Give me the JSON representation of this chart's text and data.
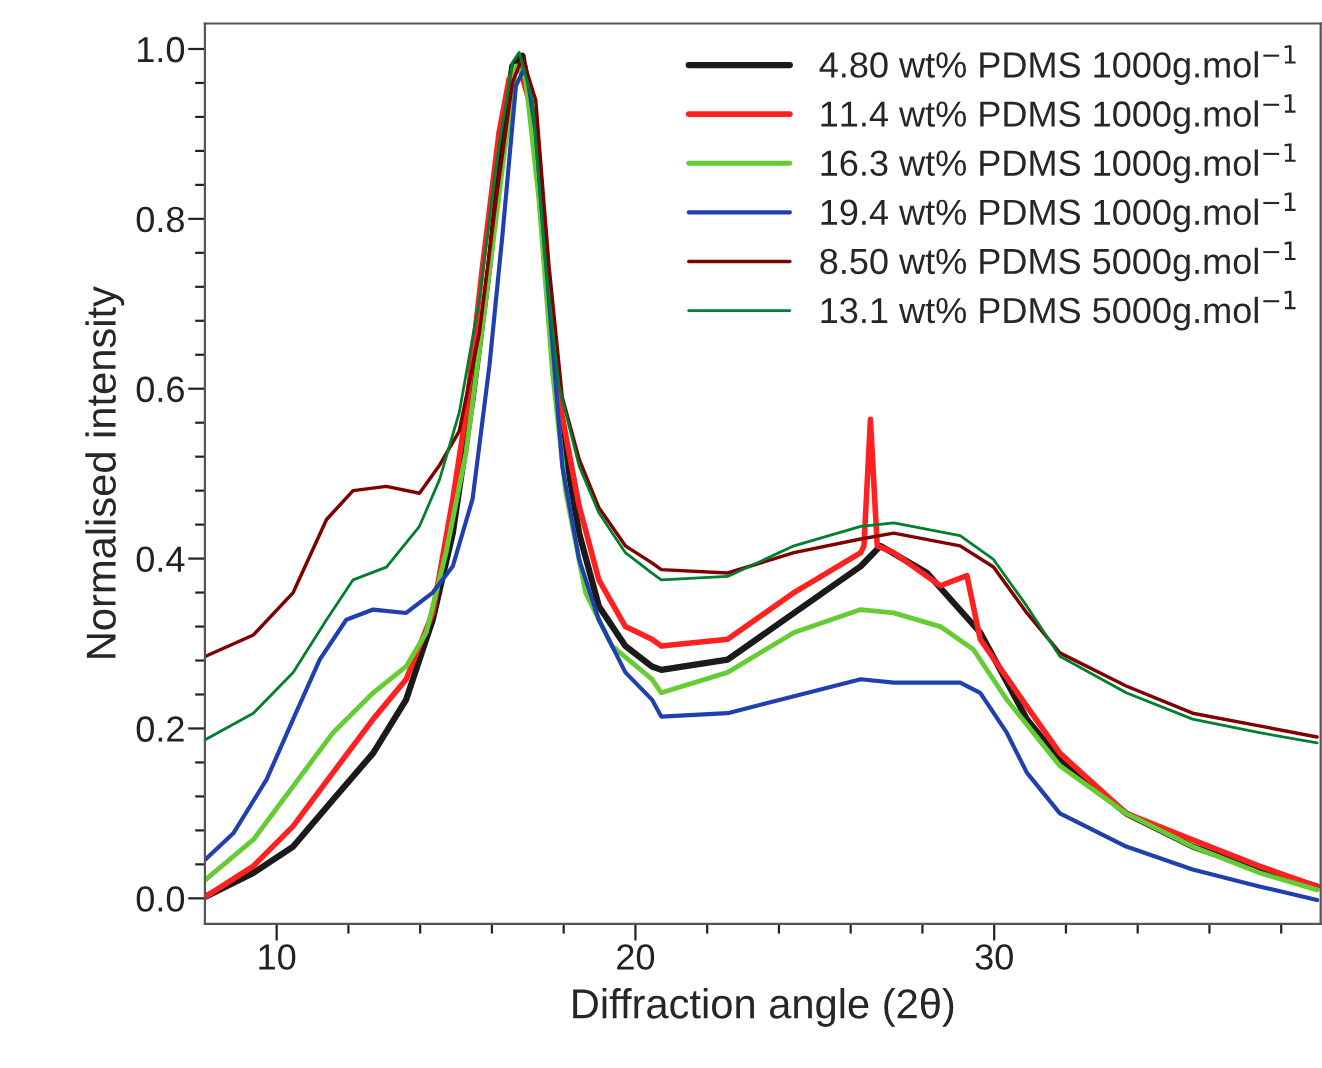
{
  "chart_data": {
    "type": "line",
    "xlabel": "Diffraction angle (2θ)",
    "ylabel": "Normalised intensity",
    "xlim": [
      8,
      39.1
    ],
    "ylim": [
      -0.03,
      1.03
    ],
    "xticks": [
      {
        "value": 10,
        "label": "10"
      },
      {
        "value": 12,
        "label": null
      },
      {
        "value": 14,
        "label": null
      },
      {
        "value": 16,
        "label": null
      },
      {
        "value": 18,
        "label": null
      },
      {
        "value": 20,
        "label": "20"
      },
      {
        "value": 22,
        "label": null
      },
      {
        "value": 24,
        "label": null
      },
      {
        "value": 26,
        "label": null
      },
      {
        "value": 28,
        "label": null
      },
      {
        "value": 30,
        "label": "30"
      },
      {
        "value": 32,
        "label": null
      },
      {
        "value": 34,
        "label": null
      },
      {
        "value": 36,
        "label": null
      },
      {
        "value": 38,
        "label": null
      }
    ],
    "yticks": [
      {
        "value": 0.0,
        "label": "0.0"
      },
      {
        "value": 0.04,
        "label": null
      },
      {
        "value": 0.08,
        "label": null
      },
      {
        "value": 0.12,
        "label": null
      },
      {
        "value": 0.16,
        "label": null
      },
      {
        "value": 0.2,
        "label": "0.2"
      },
      {
        "value": 0.24,
        "label": null
      },
      {
        "value": 0.28,
        "label": null
      },
      {
        "value": 0.32,
        "label": null
      },
      {
        "value": 0.36,
        "label": null
      },
      {
        "value": 0.4,
        "label": "0.4"
      },
      {
        "value": 0.44,
        "label": null
      },
      {
        "value": 0.48,
        "label": null
      },
      {
        "value": 0.52,
        "label": null
      },
      {
        "value": 0.56,
        "label": null
      },
      {
        "value": 0.6,
        "label": "0.6"
      },
      {
        "value": 0.64,
        "label": null
      },
      {
        "value": 0.68,
        "label": null
      },
      {
        "value": 0.72,
        "label": null
      },
      {
        "value": 0.76,
        "label": null
      },
      {
        "value": 0.8,
        "label": "0.8"
      },
      {
        "value": 0.84,
        "label": null
      },
      {
        "value": 0.88,
        "label": null
      },
      {
        "value": 0.92,
        "label": null
      },
      {
        "value": 0.96,
        "label": null
      },
      {
        "value": 1.0,
        "label": "1.0"
      }
    ],
    "grid": false,
    "legend": "top right",
    "marker": "none",
    "line_style": "solid",
    "series": [
      {
        "name": "4.80 wt% PDMS 1000g.mol$^{−1}$",
        "color": "#1a1a1a",
        "x": [
          8.02,
          9.35,
          10.46,
          11.57,
          12.69,
          13.61,
          14.35,
          14.91,
          15.46,
          15.93,
          16.3,
          16.57,
          16.85,
          17.22,
          17.59,
          17.96,
          18.43,
          18.98,
          19.72,
          20.46,
          20.72,
          22.57,
          24.42,
          26.28,
          26.83,
          28.13,
          29.61,
          30.91,
          31.83,
          33.68,
          35.53,
          37.39,
          39.0
        ],
        "values": [
          0.002,
          0.03,
          0.061,
          0.116,
          0.171,
          0.234,
          0.328,
          0.43,
          0.588,
          0.745,
          0.902,
          0.98,
          0.992,
          0.902,
          0.705,
          0.548,
          0.43,
          0.344,
          0.297,
          0.273,
          0.269,
          0.281,
          0.336,
          0.391,
          0.415,
          0.383,
          0.313,
          0.211,
          0.163,
          0.1,
          0.061,
          0.034,
          0.014
        ]
      },
      {
        "name": "11.4 wt% PDMS 1000g.mol$^{−1}$",
        "color": "#ff2020",
        "x": [
          8.02,
          9.35,
          10.46,
          11.57,
          12.69,
          13.61,
          14.35,
          14.91,
          15.28,
          15.74,
          16.2,
          16.48,
          16.76,
          17.13,
          17.5,
          17.87,
          18.43,
          18.98,
          19.72,
          20.46,
          20.72,
          22.57,
          24.42,
          26.28,
          26.37,
          26.55,
          26.74,
          27.2,
          28.5,
          29.24,
          29.61,
          30.91,
          31.83,
          33.68,
          35.53,
          37.39,
          39.0
        ],
        "values": [
          0.002,
          0.038,
          0.085,
          0.148,
          0.211,
          0.258,
          0.336,
          0.47,
          0.572,
          0.745,
          0.902,
          0.965,
          0.98,
          0.925,
          0.745,
          0.588,
          0.462,
          0.375,
          0.32,
          0.305,
          0.297,
          0.305,
          0.36,
          0.407,
          0.415,
          0.564,
          0.415,
          0.407,
          0.368,
          0.38,
          0.305,
          0.226,
          0.171,
          0.1,
          0.069,
          0.038,
          0.014
        ]
      },
      {
        "name": "16.3 wt% PDMS 1000g.mol$^{−1}$",
        "color": "#66cc33",
        "x": [
          8.02,
          9.35,
          10.46,
          11.57,
          12.69,
          13.61,
          14.17,
          14.72,
          15.28,
          15.83,
          16.3,
          16.67,
          16.94,
          17.31,
          17.69,
          18.06,
          18.61,
          19.35,
          20.46,
          20.72,
          22.57,
          24.42,
          26.28,
          27.2,
          28.5,
          29.42,
          30.35,
          31.83,
          33.68,
          35.53,
          37.39,
          39.0
        ],
        "values": [
          0.022,
          0.069,
          0.132,
          0.195,
          0.242,
          0.273,
          0.313,
          0.407,
          0.525,
          0.705,
          0.862,
          0.98,
          0.965,
          0.823,
          0.619,
          0.478,
          0.36,
          0.297,
          0.258,
          0.242,
          0.266,
          0.313,
          0.34,
          0.336,
          0.32,
          0.293,
          0.234,
          0.156,
          0.1,
          0.061,
          0.03,
          0.01
        ]
      },
      {
        "name": "19.4 wt% PDMS 1000g.mol$^{−1}$",
        "color": "#2040b0",
        "x": [
          8.02,
          8.8,
          9.72,
          10.46,
          11.2,
          11.94,
          12.69,
          13.61,
          14.35,
          14.91,
          15.46,
          15.93,
          16.3,
          16.67,
          16.94,
          17.22,
          17.59,
          17.96,
          18.43,
          18.98,
          19.72,
          20.46,
          20.72,
          22.57,
          24.42,
          26.28,
          27.2,
          29.05,
          29.61,
          30.35,
          30.91,
          31.83,
          33.68,
          35.53,
          37.39,
          39.0
        ],
        "values": [
          0.046,
          0.077,
          0.14,
          0.211,
          0.281,
          0.328,
          0.34,
          0.336,
          0.36,
          0.391,
          0.47,
          0.627,
          0.784,
          0.957,
          0.98,
          0.902,
          0.705,
          0.509,
          0.399,
          0.328,
          0.266,
          0.234,
          0.214,
          0.218,
          0.238,
          0.258,
          0.254,
          0.254,
          0.242,
          0.195,
          0.148,
          0.1,
          0.061,
          0.034,
          0.014,
          -0.002
        ]
      },
      {
        "name": "8.50 wt% PDMS 5000g.mol$^{−1}$",
        "color": "#7f0000",
        "x": [
          8.02,
          9.35,
          10.46,
          11.39,
          12.13,
          13.06,
          13.98,
          14.54,
          15.09,
          15.65,
          16.11,
          16.57,
          16.85,
          17.22,
          17.59,
          17.96,
          18.43,
          18.98,
          19.72,
          20.46,
          20.72,
          22.57,
          24.42,
          26.28,
          27.2,
          29.05,
          29.98,
          30.91,
          31.83,
          33.68,
          35.53,
          37.39,
          39.0
        ],
        "values": [
          0.285,
          0.31,
          0.36,
          0.446,
          0.48,
          0.485,
          0.477,
          0.51,
          0.55,
          0.666,
          0.82,
          0.96,
          0.99,
          0.94,
          0.745,
          0.59,
          0.517,
          0.46,
          0.415,
          0.395,
          0.387,
          0.383,
          0.407,
          0.423,
          0.43,
          0.415,
          0.39,
          0.336,
          0.289,
          0.25,
          0.218,
          0.203,
          0.19
        ]
      },
      {
        "name": "13.1 wt% PDMS 5000g.mol$^{−1}$",
        "color": "#007f30",
        "x": [
          8.02,
          9.35,
          10.46,
          11.39,
          12.13,
          13.06,
          13.98,
          14.54,
          15.09,
          15.65,
          16.11,
          16.57,
          16.76,
          17.13,
          17.5,
          17.87,
          18.43,
          18.98,
          19.72,
          20.46,
          20.72,
          22.57,
          24.42,
          26.28,
          27.2,
          29.05,
          29.98,
          30.91,
          31.83,
          33.68,
          35.53,
          37.39,
          39.0
        ],
        "values": [
          0.187,
          0.218,
          0.266,
          0.328,
          0.375,
          0.39,
          0.438,
          0.493,
          0.572,
          0.705,
          0.862,
          0.984,
          0.996,
          0.94,
          0.745,
          0.603,
          0.509,
          0.454,
          0.407,
          0.383,
          0.375,
          0.379,
          0.415,
          0.438,
          0.442,
          0.427,
          0.399,
          0.344,
          0.285,
          0.242,
          0.211,
          0.195,
          0.183
        ]
      }
    ]
  }
}
